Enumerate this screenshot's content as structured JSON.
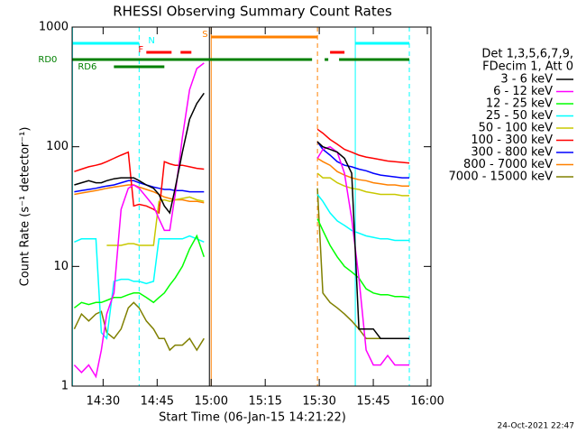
{
  "chart_data": {
    "type": "line",
    "title": "RHESSI Observing Summary Count Rates",
    "xlabel": "Start Time (06-Jan-15 14:21:22)",
    "ylabel": "Count Rate (s⁻¹ detector⁻¹)",
    "footer": "24-Oct-2021 22:47",
    "legend_title": [
      "Det 1,3,5,6,7,9,",
      "FDecim 1, Att 0"
    ],
    "legend": "right",
    "ylog": true,
    "xlim": [
      21.4,
      121
    ],
    "ylim": [
      1,
      1000
    ],
    "yticks": [
      1,
      10,
      100,
      1000
    ],
    "xticks": [
      {
        "value": 30,
        "label": "14:30"
      },
      {
        "value": 45,
        "label": "14:45"
      },
      {
        "value": 60,
        "label": "15:00"
      },
      {
        "value": 75,
        "label": "15:15"
      },
      {
        "value": 90,
        "label": "15:30"
      },
      {
        "value": 105,
        "label": "15:45"
      },
      {
        "value": 120,
        "label": "16:00"
      }
    ],
    "x": [
      22,
      24,
      26,
      28,
      29.5,
      31,
      33,
      35,
      37,
      38.5,
      40,
      42,
      44,
      45.5,
      47,
      48.5,
      50,
      52,
      54,
      56,
      58,
      75,
      89.5,
      91,
      93,
      95,
      97,
      99,
      101,
      103,
      105,
      107,
      109,
      111,
      113,
      115
    ],
    "series": [
      {
        "name": "3 - 6 keV",
        "color": "#000000",
        "values": [
          48,
          50,
          52,
          50,
          50,
          52,
          54,
          55,
          55,
          55,
          52,
          48,
          45,
          40,
          32,
          28,
          45,
          90,
          170,
          230,
          280,
          null,
          110,
          100,
          95,
          90,
          80,
          60,
          3,
          3,
          3,
          2.5,
          2.5,
          2.5,
          2.5,
          2.5
        ]
      },
      {
        "name": "6 - 12 keV",
        "color": "#ff00ff",
        "values": [
          1.5,
          1.3,
          1.5,
          1.2,
          2,
          4,
          6,
          30,
          45,
          48,
          45,
          38,
          32,
          25,
          20,
          20,
          40,
          120,
          300,
          450,
          500,
          null,
          80,
          95,
          100,
          90,
          60,
          25,
          8,
          2,
          1.5,
          1.5,
          1.8,
          1.5,
          1.5,
          1.5
        ]
      },
      {
        "name": "12 - 25 keV",
        "color": "#00ff00",
        "values": [
          4.5,
          5,
          4.8,
          5,
          5,
          5.2,
          5.5,
          5.5,
          5.8,
          6,
          6,
          5.5,
          5,
          5.5,
          6,
          7,
          8,
          10,
          14,
          18,
          12,
          null,
          25,
          20,
          15,
          12,
          10,
          9,
          8,
          6.5,
          6,
          5.8,
          5.8,
          5.6,
          5.6,
          5.5
        ]
      },
      {
        "name": "25 - 50 keV",
        "color": "#00ffff",
        "values": [
          16,
          17,
          17,
          17,
          2.8,
          2.5,
          7.5,
          7.8,
          7.8,
          7.5,
          7.5,
          7.2,
          7.5,
          17,
          17,
          17,
          17,
          17,
          18,
          17,
          16,
          null,
          40,
          35,
          28,
          24,
          22,
          20,
          19,
          18,
          17.5,
          17,
          17,
          16.5,
          16.5,
          16.5
        ]
      },
      {
        "name": "50 - 100 keV",
        "color": "#c8c800",
        "values": [
          null,
          null,
          null,
          null,
          null,
          15,
          15,
          15,
          15.5,
          15.5,
          15,
          15,
          15,
          35,
          36,
          35,
          36,
          37,
          38,
          36,
          35,
          null,
          60,
          55,
          55,
          50,
          47,
          45,
          44,
          42,
          41,
          40,
          40,
          40,
          39,
          39
        ]
      },
      {
        "name": "100 - 300 keV",
        "color": "#ff0000",
        "values": [
          62,
          65,
          68,
          70,
          72,
          75,
          80,
          85,
          90,
          32,
          33,
          32,
          30,
          28,
          75,
          72,
          70,
          70,
          68,
          66,
          65,
          null,
          140,
          130,
          115,
          105,
          95,
          90,
          85,
          82,
          80,
          78,
          76,
          75,
          74,
          73
        ]
      },
      {
        "name": "300 - 800 keV",
        "color": "#0000ff",
        "values": [
          42,
          43,
          44,
          45,
          46,
          47,
          48,
          50,
          52,
          52,
          50,
          48,
          46,
          45,
          44,
          44,
          43,
          43,
          42,
          42,
          42,
          null,
          110,
          95,
          85,
          75,
          70,
          68,
          65,
          63,
          60,
          58,
          57,
          56,
          55,
          55
        ]
      },
      {
        "name": "800 - 7000 keV",
        "color": "#ff8000",
        "values": [
          40,
          41,
          42,
          43,
          44,
          45,
          46,
          47,
          48,
          48,
          46,
          44,
          42,
          40,
          38,
          37,
          36,
          36,
          35,
          35,
          34,
          null,
          80,
          75,
          70,
          62,
          58,
          55,
          53,
          52,
          50,
          49,
          48,
          48,
          47,
          47
        ]
      },
      {
        "name": "7000 - 15000 keV",
        "color": "#808000",
        "values": [
          3,
          4,
          3.5,
          4,
          4.2,
          2.8,
          2.5,
          3,
          4.5,
          5,
          4.5,
          3.5,
          3,
          2.5,
          2.5,
          2,
          2.2,
          2.2,
          2.5,
          2,
          2.5,
          null,
          45,
          6,
          5,
          4.5,
          4,
          3.5,
          3,
          2.5,
          2.5,
          2.5,
          2.5,
          2.5,
          2.5,
          2.5
        ]
      }
    ],
    "markers": [
      {
        "x": 21.5,
        "color": "#00ffff",
        "dashed": false
      },
      {
        "x": 40,
        "color": "#00ffff",
        "dashed": true
      },
      {
        "x": 59.5,
        "color": "#000000",
        "dashed": false
      },
      {
        "x": 60,
        "color": "#ff8000",
        "dashed": false
      },
      {
        "x": 89.5,
        "color": "#ff8000",
        "dashed": true
      },
      {
        "x": 100,
        "color": "#00ffff",
        "dashed": false
      },
      {
        "x": 115,
        "color": "#00ffff",
        "dashed": true
      }
    ],
    "flags": [
      {
        "label": "N",
        "color": "#00ffff",
        "intervals": [
          [
            21.5,
            40
          ],
          [
            100,
            115
          ]
        ]
      },
      {
        "label": "S",
        "color": "#ff8000",
        "intervals": [
          [
            60,
            89.5
          ]
        ]
      },
      {
        "label": "F",
        "color": "#ff0000",
        "intervals": [
          [
            42,
            49
          ],
          [
            51.5,
            54.5
          ],
          [
            93,
            97
          ]
        ]
      },
      {
        "label": "RD0",
        "color": "#008000",
        "intervals": [
          [
            21.5,
            88
          ],
          [
            91.5,
            92.5
          ],
          [
            95.5,
            115
          ]
        ]
      },
      {
        "label": "RD6",
        "color": "#008000",
        "intervals": [
          [
            33,
            47
          ]
        ]
      }
    ]
  }
}
